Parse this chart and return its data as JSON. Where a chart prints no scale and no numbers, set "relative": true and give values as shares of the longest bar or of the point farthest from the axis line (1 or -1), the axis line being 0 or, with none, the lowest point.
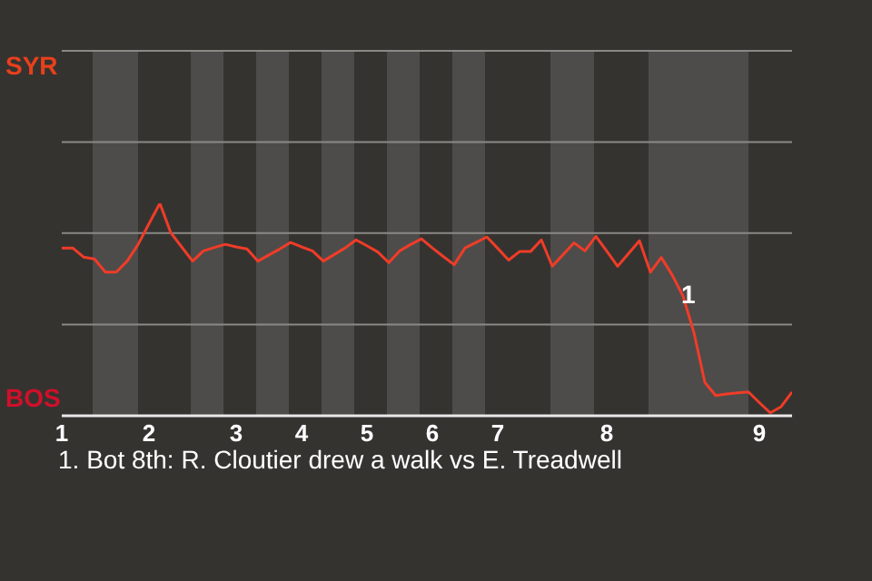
{
  "chart_data": {
    "type": "line",
    "categories": [
      "1",
      null,
      null,
      null,
      null,
      null,
      null,
      null,
      "2",
      null,
      null,
      null,
      null,
      null,
      null,
      null,
      "3",
      null,
      null,
      null,
      null,
      null,
      "4",
      null,
      null,
      null,
      null,
      null,
      "5",
      null,
      null,
      null,
      null,
      null,
      "6",
      null,
      null,
      null,
      null,
      null,
      "7",
      null,
      null,
      null,
      null,
      null,
      null,
      null,
      null,
      null,
      "8",
      null,
      null,
      null,
      null,
      null,
      null,
      null,
      null,
      null,
      null,
      null,
      null,
      null,
      "9",
      null,
      null,
      null
    ],
    "series": [
      {
        "color": "#f03c28",
        "values": [
          0.79,
          0.79,
          0.747,
          0.738,
          0.676,
          0.676,
          0.728,
          0.806,
          0.904,
          1,
          0.862,
          0.795,
          0.728,
          0.776,
          0.792,
          0.807,
          0.795,
          0.785,
          0.728,
          0.757,
          0.785,
          0.816,
          0.795,
          0.776,
          0.728,
          0.759,
          0.79,
          0.828,
          0.8,
          0.771,
          0.721,
          0.776,
          0.806,
          0.833,
          0.79,
          0.75,
          0.711,
          0.79,
          0.816,
          0.842,
          0.788,
          0.733,
          0.773,
          0.773,
          0.828,
          0.704,
          0.759,
          0.814,
          0.776,
          0.845,
          0.775,
          0.704,
          0.764,
          0.824,
          0.676,
          0.745,
          0.663,
          0.563,
          0.391,
          0.157,
          0.095,
          0.103,
          0.108,
          0.112,
          0.062,
          0.014,
          0.043,
          0.112
        ]
      }
    ],
    "relative": true,
    "marker": "none",
    "ref_lines": [
      {
        "axis": "y",
        "value": 0.86,
        "color": "#8a8986"
      },
      {
        "axis": "y",
        "value": 0.43,
        "color": "#8a8986"
      }
    ],
    "line_style": "solid",
    "annotations": [
      "SYR",
      "BOS",
      "1",
      "1. Bot 8th: R. Cloutier drew a walk vs E. Treadwell"
    ]
  }
}
